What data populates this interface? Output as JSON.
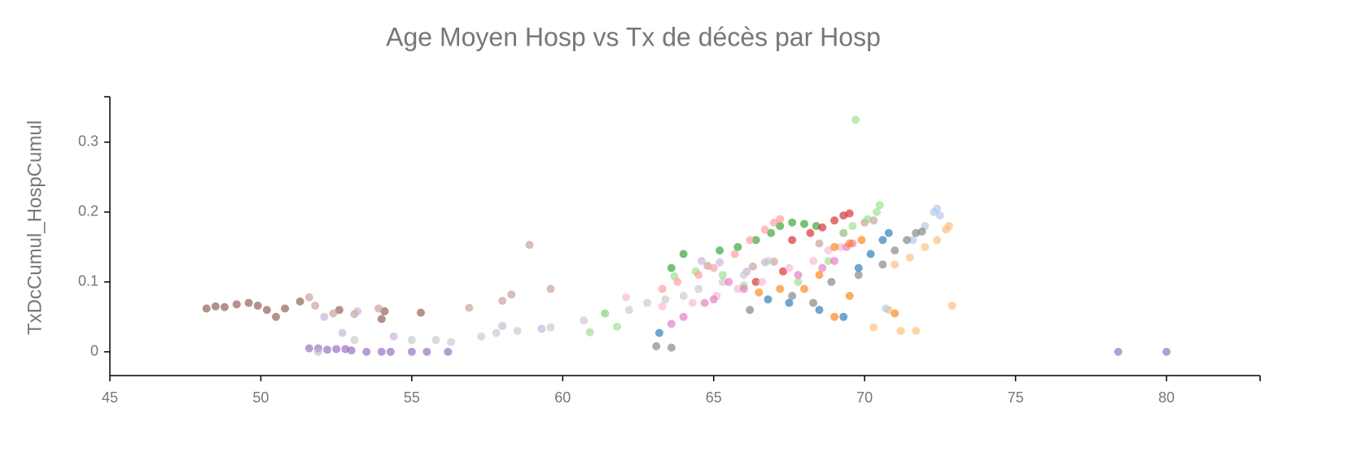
{
  "chart_data": {
    "type": "scatter",
    "title": "Age Moyen Hosp vs Tx de décès par Hosp",
    "y_label": "TxDcCumul_HospCumul",
    "xlim": [
      45,
      83.1
    ],
    "ylim": [
      -0.034,
      0.365
    ],
    "xticks": [
      45,
      50,
      55,
      60,
      65,
      70,
      75,
      80
    ],
    "yticks": [
      0,
      0.1,
      0.2,
      0.3
    ],
    "series": [
      {
        "color": "#8c564b",
        "x": [
          48.2,
          48.5,
          48.8,
          49.2,
          49.6,
          49.9,
          50.2,
          50.5,
          50.8,
          51.3,
          52.6,
          54.1,
          54.0,
          55.3
        ],
        "values": [
          0.062,
          0.065,
          0.064,
          0.068,
          0.07,
          0.066,
          0.06,
          0.05,
          0.062,
          0.072,
          0.06,
          0.058,
          0.047,
          0.056
        ]
      },
      {
        "color": "#c49c94",
        "x": [
          51.6,
          51.8,
          52.4,
          53.1,
          53.9,
          56.9,
          58.0,
          58.3,
          58.9,
          59.6,
          64.8,
          66.3,
          67.0,
          68.5,
          69.3,
          70.0,
          70.3
        ],
        "values": [
          0.078,
          0.066,
          0.055,
          0.054,
          0.062,
          0.063,
          0.073,
          0.082,
          0.153,
          0.09,
          0.123,
          0.122,
          0.129,
          0.155,
          0.17,
          0.185,
          0.188
        ]
      },
      {
        "color": "#9467bd",
        "x": [
          51.6,
          51.9,
          52.2,
          52.5,
          52.8,
          53.0,
          53.5,
          54.0,
          54.3,
          55.0,
          55.5,
          56.2,
          78.4,
          80.0
        ],
        "values": [
          0.005,
          0.005,
          0.003,
          0.004,
          0.004,
          0.002,
          0,
          0,
          0,
          0,
          0,
          0,
          0,
          0
        ]
      },
      {
        "color": "#c5b0d5",
        "x": [
          51.9,
          52.1,
          52.7,
          53.2,
          54.4,
          58.0,
          59.3,
          64.6,
          65.2,
          66.1,
          66.7
        ],
        "values": [
          0,
          0.05,
          0.027,
          0.058,
          0.022,
          0.037,
          0.033,
          0.13,
          0.128,
          0.115,
          0.128
        ]
      },
      {
        "color": "#c7c7c7",
        "x": [
          53.1,
          55.0,
          55.8,
          56.3,
          57.3,
          57.8,
          58.5,
          59.6,
          60.7,
          61.4,
          62.2,
          62.8,
          63.4,
          64.0,
          64.5,
          65.3,
          66.0,
          66.8
        ],
        "values": [
          0.017,
          0.017,
          0.017,
          0.014,
          0.022,
          0.027,
          0.03,
          0.035,
          0.045,
          0.055,
          0.06,
          0.07,
          0.075,
          0.08,
          0.09,
          0.1,
          0.11,
          0.13
        ]
      },
      {
        "color": "#2ca02c",
        "x": [
          63.6,
          64.0,
          65.2,
          65.8,
          66.4,
          66.9,
          67.2,
          67.6,
          68.0,
          68.4
        ],
        "values": [
          0.12,
          0.14,
          0.145,
          0.15,
          0.16,
          0.17,
          0.18,
          0.185,
          0.183,
          0.18
        ]
      },
      {
        "color": "#98df8a",
        "x": [
          60.9,
          61.4,
          61.8,
          63.7,
          64.4,
          65.3,
          66.0,
          67.8,
          68.8,
          69.3,
          69.6,
          69.7,
          70.1,
          70.4,
          70.5
        ],
        "values": [
          0.028,
          0.055,
          0.036,
          0.108,
          0.115,
          0.11,
          0.095,
          0.1,
          0.13,
          0.17,
          0.18,
          0.332,
          0.19,
          0.2,
          0.21
        ]
      },
      {
        "color": "#ff9896",
        "x": [
          63.3,
          63.8,
          64.5,
          65.0,
          65.7,
          66.2,
          66.7,
          67.0,
          67.2
        ],
        "values": [
          0.09,
          0.1,
          0.11,
          0.12,
          0.14,
          0.16,
          0.175,
          0.185,
          0.19
        ]
      },
      {
        "color": "#d62728",
        "x": [
          66.4,
          67.3,
          67.6,
          68.2,
          68.6,
          69.0,
          69.3,
          69.5
        ],
        "values": [
          0.1,
          0.115,
          0.16,
          0.17,
          0.178,
          0.188,
          0.195,
          0.198
        ]
      },
      {
        "color": "#f7b6d2",
        "x": [
          62.1,
          63.3,
          64.3,
          65.1,
          65.8,
          66.6,
          67.5,
          68.3,
          68.8,
          69.2
        ],
        "values": [
          0.078,
          0.065,
          0.07,
          0.08,
          0.09,
          0.1,
          0.12,
          0.13,
          0.145,
          0.15
        ]
      },
      {
        "color": "#e377c2",
        "x": [
          63.6,
          64.0,
          64.7,
          65.0,
          65.5,
          66.0,
          67.8,
          68.6,
          69.0,
          69.4,
          69.6
        ],
        "values": [
          0.04,
          0.05,
          0.07,
          0.075,
          0.1,
          0.09,
          0.11,
          0.12,
          0.13,
          0.15,
          0.155
        ]
      },
      {
        "color": "#ff7f0e",
        "x": [
          66.5,
          67.2,
          68.0,
          68.5,
          69.0,
          69.5,
          69.9,
          69.5,
          71.0,
          69.0
        ],
        "values": [
          0.085,
          0.09,
          0.09,
          0.11,
          0.15,
          0.155,
          0.16,
          0.08,
          0.055,
          0.05
        ]
      },
      {
        "color": "#ffbb78",
        "x": [
          70.3,
          70.8,
          71.2,
          71.7,
          71.0,
          71.5,
          72.0,
          72.4,
          72.7,
          72.8,
          72.9
        ],
        "values": [
          0.035,
          0.06,
          0.03,
          0.03,
          0.125,
          0.135,
          0.15,
          0.16,
          0.175,
          0.18,
          0.066
        ]
      },
      {
        "color": "#1f77b4",
        "x": [
          63.2,
          66.8,
          67.5,
          68.5,
          69.3,
          69.8,
          70.2,
          70.6,
          70.8
        ],
        "values": [
          0.027,
          0.075,
          0.07,
          0.06,
          0.05,
          0.12,
          0.14,
          0.16,
          0.17
        ]
      },
      {
        "color": "#aec7e8",
        "x": [
          70.7,
          71.6,
          72.0,
          72.3,
          72.4,
          72.5
        ],
        "values": [
          0.062,
          0.16,
          0.18,
          0.2,
          0.205,
          0.195
        ]
      },
      {
        "color": "#7f7f7f",
        "x": [
          63.1,
          63.6,
          66.2,
          67.6,
          68.3,
          68.9,
          69.8,
          70.6,
          71.0,
          71.4,
          71.7,
          71.9
        ],
        "values": [
          0.008,
          0.006,
          0.06,
          0.08,
          0.07,
          0.1,
          0.11,
          0.125,
          0.145,
          0.16,
          0.17,
          0.172
        ]
      }
    ]
  }
}
